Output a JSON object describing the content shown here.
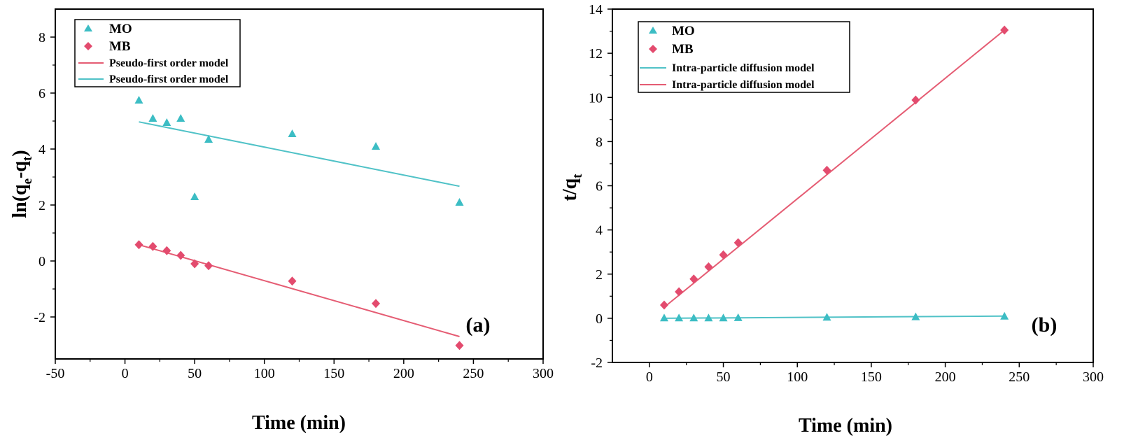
{
  "colors": {
    "mo": "#3cbdc4",
    "mb": "#e34b6e",
    "fit_mo": "#50c2c7",
    "fit_mb": "#e55c73"
  },
  "chart_data": [
    {
      "type": "scatter",
      "panel_label": "(a)",
      "xlabel": "Time (min)",
      "ylabel_main": "ln(q",
      "ylabel_sub1": "e",
      "ylabel_mid": "-q",
      "ylabel_sub2": "t",
      "ylabel_end": ")",
      "xlim": [
        -50,
        300
      ],
      "ylim": [
        -3.5,
        9
      ],
      "xticks": [
        -50,
        0,
        50,
        100,
        150,
        200,
        250,
        300
      ],
      "yticks": [
        -2,
        0,
        2,
        4,
        6,
        8
      ],
      "legend": {
        "placement": "top-left",
        "entries": [
          "MO",
          "MB",
          "Pseudo-first order model",
          "Pseudo-first order model"
        ]
      },
      "series": [
        {
          "name": "MO",
          "marker": "triangle",
          "color": "#3cbdc4",
          "x": [
            10,
            20,
            30,
            40,
            50,
            60,
            120,
            180,
            240
          ],
          "y": [
            5.75,
            5.1,
            4.95,
            5.1,
            2.3,
            4.35,
            4.55,
            4.1,
            2.1
          ]
        },
        {
          "name": "MB",
          "marker": "diamond",
          "color": "#e34b6e",
          "x": [
            10,
            20,
            30,
            40,
            50,
            60,
            120,
            180,
            240
          ],
          "y": [
            0.58,
            0.52,
            0.37,
            0.2,
            -0.1,
            -0.17,
            -0.72,
            -1.52,
            -3.02
          ]
        }
      ],
      "fits": [
        {
          "name": "Pseudo-first order model",
          "color": "#e55c73",
          "x": [
            10,
            240
          ],
          "y": [
            0.58,
            -2.7
          ]
        },
        {
          "name": "Pseudo-first order model",
          "color": "#50c2c7",
          "x": [
            10,
            240
          ],
          "y": [
            4.97,
            2.67
          ]
        }
      ]
    },
    {
      "type": "scatter",
      "panel_label": "(b)",
      "xlabel": "Time (min)",
      "ylabel_main": "t/q",
      "ylabel_sub1": "t",
      "ylabel_mid": "",
      "ylabel_sub2": "",
      "ylabel_end": "",
      "xlim": [
        -25,
        300
      ],
      "ylim": [
        -2,
        14
      ],
      "xticks": [
        0,
        50,
        100,
        150,
        200,
        250,
        300
      ],
      "yticks": [
        -2,
        0,
        2,
        4,
        6,
        8,
        10,
        12,
        14
      ],
      "legend": {
        "placement": "top-left",
        "entries": [
          "MO",
          "MB",
          "Intra-particle diffusion model",
          "Intra-particle diffusion model"
        ]
      },
      "series": [
        {
          "name": "MO",
          "marker": "triangle",
          "color": "#3cbdc4",
          "x": [
            10,
            20,
            30,
            40,
            50,
            60,
            120,
            180,
            240
          ],
          "y": [
            0.02,
            0.02,
            0.02,
            0.02,
            0.02,
            0.03,
            0.05,
            0.07,
            0.1
          ]
        },
        {
          "name": "MB",
          "marker": "diamond",
          "color": "#e34b6e",
          "x": [
            10,
            20,
            30,
            40,
            50,
            60,
            120,
            180,
            240
          ],
          "y": [
            0.6,
            1.2,
            1.78,
            2.33,
            2.87,
            3.42,
            6.7,
            9.88,
            13.05
          ]
        }
      ],
      "fits": [
        {
          "name": "Intra-particle diffusion model",
          "color": "#50c2c7",
          "x": [
            10,
            240
          ],
          "y": [
            0.0,
            0.1
          ]
        },
        {
          "name": "Intra-particle diffusion model",
          "color": "#e55c73",
          "x": [
            10,
            240
          ],
          "y": [
            0.5,
            13.05
          ]
        }
      ]
    }
  ]
}
